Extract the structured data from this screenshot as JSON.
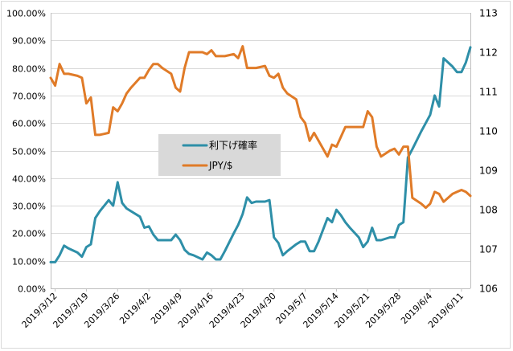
{
  "chart_data": {
    "type": "line",
    "title": "",
    "legend_position": "center-left",
    "grid": true,
    "y_left": {
      "range": [
        0,
        100
      ],
      "ticks": [
        0,
        10,
        20,
        30,
        40,
        50,
        60,
        70,
        80,
        90,
        100
      ],
      "tick_labels": [
        "0.00%",
        "10.00%",
        "20.00%",
        "30.00%",
        "40.00%",
        "50.00%",
        "60.00%",
        "70.00%",
        "80.00%",
        "90.00%",
        "100.00%"
      ]
    },
    "y_right": {
      "range": [
        106,
        113
      ],
      "ticks": [
        106,
        107,
        108,
        109,
        110,
        111,
        112,
        113
      ],
      "tick_labels": [
        "106",
        "107",
        "108",
        "109",
        "110",
        "111",
        "112",
        "113"
      ]
    },
    "x_axis": {
      "range": [
        "2019/3/11",
        "2019/6/13"
      ],
      "tick_labels": [
        "2019/3/12",
        "2019/3/19",
        "2019/3/26",
        "2019/4/2",
        "2019/4/9",
        "2019/4/16",
        "2019/4/23",
        "2019/4/30",
        "2019/5/7",
        "2019/5/14",
        "2019/5/21",
        "2019/5/28",
        "2019/6/4",
        "2019/6/11"
      ],
      "tick_dates": [
        "2019-03-12",
        "2019-03-19",
        "2019-03-26",
        "2019-04-02",
        "2019-04-09",
        "2019-04-16",
        "2019-04-23",
        "2019-04-30",
        "2019-05-07",
        "2019-05-14",
        "2019-05-21",
        "2019-05-28",
        "2019-06-04",
        "2019-06-11"
      ]
    },
    "series": [
      {
        "name": "利下げ確率",
        "axis": "left",
        "color": "#2e8fa8",
        "points": [
          [
            "2019-03-11",
            9.5
          ],
          [
            "2019-03-12",
            9.5
          ],
          [
            "2019-03-13",
            12
          ],
          [
            "2019-03-14",
            15.5
          ],
          [
            "2019-03-15",
            14.5
          ],
          [
            "2019-03-17",
            13
          ],
          [
            "2019-03-18",
            11.5
          ],
          [
            "2019-03-19",
            15
          ],
          [
            "2019-03-20",
            16
          ],
          [
            "2019-03-21",
            25.5
          ],
          [
            "2019-03-22",
            28
          ],
          [
            "2019-03-24",
            32
          ],
          [
            "2019-03-25",
            30
          ],
          [
            "2019-03-26",
            38.5
          ],
          [
            "2019-03-27",
            31
          ],
          [
            "2019-03-28",
            29
          ],
          [
            "2019-03-29",
            28
          ],
          [
            "2019-03-31",
            26
          ],
          [
            "2019-04-01",
            22
          ],
          [
            "2019-04-02",
            22.5
          ],
          [
            "2019-04-03",
            19.5
          ],
          [
            "2019-04-04",
            17.5
          ],
          [
            "2019-04-05",
            17.5
          ],
          [
            "2019-04-07",
            17.5
          ],
          [
            "2019-04-08",
            19.5
          ],
          [
            "2019-04-09",
            17.5
          ],
          [
            "2019-04-10",
            14
          ],
          [
            "2019-04-11",
            12.5
          ],
          [
            "2019-04-12",
            12
          ],
          [
            "2019-04-14",
            10.5
          ],
          [
            "2019-04-15",
            13
          ],
          [
            "2019-04-16",
            12
          ],
          [
            "2019-04-17",
            10.5
          ],
          [
            "2019-04-18",
            10.5
          ],
          [
            "2019-04-19",
            13.5
          ],
          [
            "2019-04-21",
            20
          ],
          [
            "2019-04-22",
            23
          ],
          [
            "2019-04-23",
            27
          ],
          [
            "2019-04-24",
            33
          ],
          [
            "2019-04-25",
            31
          ],
          [
            "2019-04-26",
            31.5
          ],
          [
            "2019-04-28",
            31.5
          ],
          [
            "2019-04-29",
            32
          ],
          [
            "2019-04-30",
            18.5
          ],
          [
            "2019-05-01",
            16.5
          ],
          [
            "2019-05-02",
            12
          ],
          [
            "2019-05-03",
            13.5
          ],
          [
            "2019-05-05",
            16
          ],
          [
            "2019-05-06",
            17
          ],
          [
            "2019-05-07",
            17
          ],
          [
            "2019-05-08",
            13.5
          ],
          [
            "2019-05-09",
            13.5
          ],
          [
            "2019-05-10",
            17
          ],
          [
            "2019-05-12",
            25.5
          ],
          [
            "2019-05-13",
            24
          ],
          [
            "2019-05-14",
            28.5
          ],
          [
            "2019-05-15",
            26.5
          ],
          [
            "2019-05-16",
            24
          ],
          [
            "2019-05-17",
            22
          ],
          [
            "2019-05-19",
            18.5
          ],
          [
            "2019-05-20",
            15
          ],
          [
            "2019-05-21",
            17
          ],
          [
            "2019-05-22",
            22
          ],
          [
            "2019-05-23",
            17.5
          ],
          [
            "2019-05-24",
            17.5
          ],
          [
            "2019-05-26",
            18.5
          ],
          [
            "2019-05-27",
            18.5
          ],
          [
            "2019-05-28",
            23
          ],
          [
            "2019-05-29",
            24
          ],
          [
            "2019-05-30",
            47.5
          ],
          [
            "2019-05-31",
            50.5
          ],
          [
            "2019-06-02",
            57
          ],
          [
            "2019-06-03",
            60
          ],
          [
            "2019-06-04",
            63
          ],
          [
            "2019-06-05",
            70
          ],
          [
            "2019-06-06",
            66
          ],
          [
            "2019-06-07",
            83.5
          ],
          [
            "2019-06-09",
            80.5
          ],
          [
            "2019-06-10",
            78.5
          ],
          [
            "2019-06-11",
            78.5
          ],
          [
            "2019-06-12",
            82
          ],
          [
            "2019-06-13",
            87.5
          ]
        ]
      },
      {
        "name": "JPY/$",
        "axis": "right",
        "color": "#e07b28",
        "points": [
          [
            "2019-03-11",
            111.35
          ],
          [
            "2019-03-12",
            111.15
          ],
          [
            "2019-03-13",
            111.7
          ],
          [
            "2019-03-14",
            111.45
          ],
          [
            "2019-03-15",
            111.45
          ],
          [
            "2019-03-17",
            111.4
          ],
          [
            "2019-03-18",
            111.35
          ],
          [
            "2019-03-19",
            110.7
          ],
          [
            "2019-03-20",
            110.85
          ],
          [
            "2019-03-21",
            109.9
          ],
          [
            "2019-03-22",
            109.9
          ],
          [
            "2019-03-24",
            109.95
          ],
          [
            "2019-03-25",
            110.6
          ],
          [
            "2019-03-26",
            110.5
          ],
          [
            "2019-03-27",
            110.7
          ],
          [
            "2019-03-28",
            110.95
          ],
          [
            "2019-03-29",
            111.1
          ],
          [
            "2019-03-31",
            111.35
          ],
          [
            "2019-04-01",
            111.35
          ],
          [
            "2019-04-02",
            111.55
          ],
          [
            "2019-04-03",
            111.7
          ],
          [
            "2019-04-04",
            111.7
          ],
          [
            "2019-04-05",
            111.6
          ],
          [
            "2019-04-07",
            111.45
          ],
          [
            "2019-04-08",
            111.1
          ],
          [
            "2019-04-09",
            111.0
          ],
          [
            "2019-04-10",
            111.6
          ],
          [
            "2019-04-11",
            112.0
          ],
          [
            "2019-04-12",
            112.0
          ],
          [
            "2019-04-14",
            112.0
          ],
          [
            "2019-04-15",
            111.95
          ],
          [
            "2019-04-16",
            112.05
          ],
          [
            "2019-04-17",
            111.9
          ],
          [
            "2019-04-18",
            111.9
          ],
          [
            "2019-04-19",
            111.9
          ],
          [
            "2019-04-21",
            111.95
          ],
          [
            "2019-04-22",
            111.85
          ],
          [
            "2019-04-23",
            112.15
          ],
          [
            "2019-04-24",
            111.6
          ],
          [
            "2019-04-25",
            111.6
          ],
          [
            "2019-04-26",
            111.6
          ],
          [
            "2019-04-28",
            111.65
          ],
          [
            "2019-04-29",
            111.4
          ],
          [
            "2019-04-30",
            111.35
          ],
          [
            "2019-05-01",
            111.45
          ],
          [
            "2019-05-02",
            111.1
          ],
          [
            "2019-05-03",
            110.95
          ],
          [
            "2019-05-05",
            110.8
          ],
          [
            "2019-05-06",
            110.35
          ],
          [
            "2019-05-07",
            110.2
          ],
          [
            "2019-05-08",
            109.75
          ],
          [
            "2019-05-09",
            109.95
          ],
          [
            "2019-05-10",
            109.75
          ],
          [
            "2019-05-12",
            109.35
          ],
          [
            "2019-05-13",
            109.65
          ],
          [
            "2019-05-14",
            109.6
          ],
          [
            "2019-05-15",
            109.85
          ],
          [
            "2019-05-16",
            110.1
          ],
          [
            "2019-05-17",
            110.1
          ],
          [
            "2019-05-19",
            110.1
          ],
          [
            "2019-05-20",
            110.1
          ],
          [
            "2019-05-21",
            110.5
          ],
          [
            "2019-05-22",
            110.35
          ],
          [
            "2019-05-23",
            109.6
          ],
          [
            "2019-05-24",
            109.35
          ],
          [
            "2019-05-26",
            109.5
          ],
          [
            "2019-05-27",
            109.55
          ],
          [
            "2019-05-28",
            109.4
          ],
          [
            "2019-05-29",
            109.6
          ],
          [
            "2019-05-30",
            109.6
          ],
          [
            "2019-05-31",
            108.3
          ],
          [
            "2019-06-02",
            108.15
          ],
          [
            "2019-06-03",
            108.05
          ],
          [
            "2019-06-04",
            108.15
          ],
          [
            "2019-06-05",
            108.45
          ],
          [
            "2019-06-06",
            108.4
          ],
          [
            "2019-06-07",
            108.2
          ],
          [
            "2019-06-09",
            108.4
          ],
          [
            "2019-06-10",
            108.45
          ],
          [
            "2019-06-11",
            108.5
          ],
          [
            "2019-06-12",
            108.45
          ],
          [
            "2019-06-13",
            108.35
          ]
        ]
      }
    ]
  }
}
